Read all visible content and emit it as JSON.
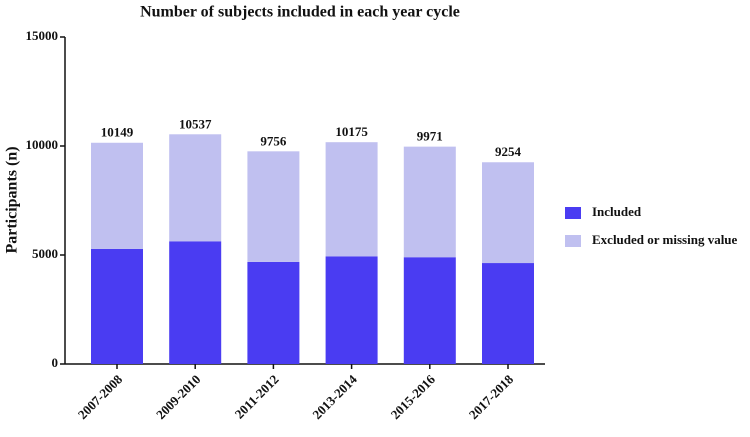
{
  "chart_data": {
    "type": "stacked_bar",
    "title": "Number of subjects included in each year cycle",
    "y_label": "Participants (n)",
    "categories": [
      "2007-2008",
      "2009-2010",
      "2011-2012",
      "2013-2014",
      "2015-2016",
      "2017-2018"
    ],
    "series": [
      {
        "name": "Included",
        "color": "#4a3cf2",
        "values": [
          5281,
          5629,
          4684,
          4939,
          4898,
          4631
        ]
      },
      {
        "name": "Excluded or missing value",
        "color": "#c0c0f0",
        "values": [
          4868,
          4908,
          5072,
          5236,
          5073,
          4623
        ]
      }
    ],
    "totals": [
      10149,
      10537,
      9756,
      10175,
      9971,
      9254
    ],
    "ylim": [
      0,
      15000
    ],
    "yticks": [
      0,
      5000,
      10000,
      15000
    ],
    "grid": false,
    "legend": "right"
  }
}
